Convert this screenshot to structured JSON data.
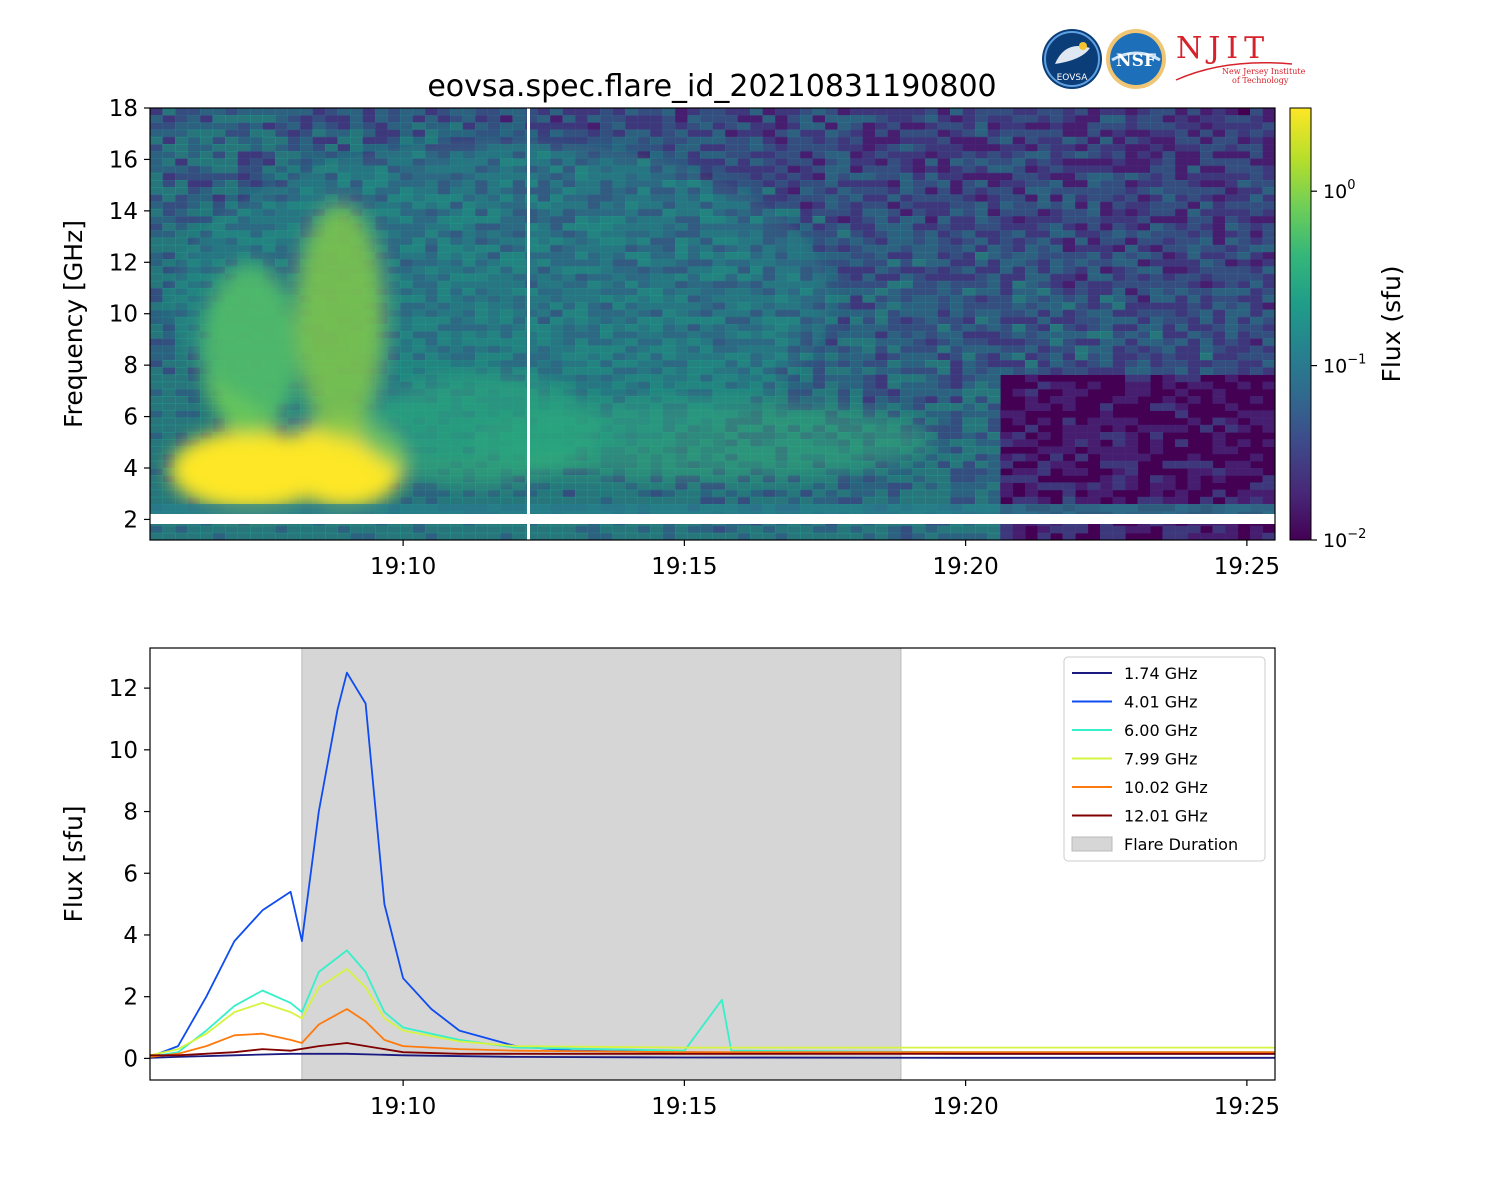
{
  "logos": {
    "eovsa": "EOVSA",
    "nsf": "NSF",
    "njit": "NJIT",
    "njit_sub1": "New Jersey Institute",
    "njit_sub2": "of Technology"
  },
  "colors": {
    "flare_shade": "#d6d6d6",
    "viridis": [
      "#440154",
      "#482878",
      "#3e4989",
      "#31688e",
      "#26828e",
      "#1f9e89",
      "#35b779",
      "#6ece58",
      "#b5de2b",
      "#fde725"
    ]
  },
  "chart_data": [
    {
      "type": "heatmap",
      "title": "eovsa.spec.flare_id_20210831190800",
      "ylabel": "Frequency [GHz]",
      "xlim": [
        "19:05:30",
        "19:25:30"
      ],
      "ylim": [
        1.2,
        18
      ],
      "xticks": [
        "19:10",
        "19:15",
        "19:20",
        "19:25"
      ],
      "yticks": [
        2,
        4,
        6,
        8,
        10,
        12,
        14,
        16,
        18
      ],
      "colorbar": {
        "label": "Flux  (sfu)",
        "scale": "log",
        "range": [
          0.01,
          3
        ],
        "ticks": [
          {
            "base": "10",
            "exp": "0",
            "value": 1
          },
          {
            "base": "10",
            "exp": "−1",
            "value": 0.1
          },
          {
            "base": "10",
            "exp": "−2",
            "value": 0.01
          }
        ]
      },
      "grid": false
    },
    {
      "type": "line",
      "ylabel": "Flux [sfu]",
      "xlim": [
        "19:05:30",
        "19:25:30"
      ],
      "ylim": [
        -0.7,
        13.3
      ],
      "xticks": [
        "19:10",
        "19:15",
        "19:20",
        "19:25"
      ],
      "yticks": [
        0,
        2,
        4,
        6,
        8,
        10,
        12
      ],
      "legend_position": "top-right",
      "grid": false,
      "flare_duration": {
        "label": "Flare Duration",
        "start": "19:08:12",
        "end": "19:18:51"
      },
      "series": [
        {
          "name": "1.74 GHz",
          "color": "#1a1a80",
          "x": [
            "19:05:30",
            "19:06:00",
            "19:07:00",
            "19:08:00",
            "19:09:00",
            "19:10:00",
            "19:12:00",
            "19:15:00",
            "19:20:00",
            "19:25:30"
          ],
          "y": [
            0.02,
            0.05,
            0.1,
            0.15,
            0.15,
            0.1,
            0.05,
            0.03,
            0.02,
            0.02
          ]
        },
        {
          "name": "4.01 GHz",
          "color": "#0f4cf0",
          "x": [
            "19:05:30",
            "19:06:00",
            "19:06:30",
            "19:07:00",
            "19:07:30",
            "19:08:00",
            "19:08:12",
            "19:08:30",
            "19:08:50",
            "19:09:00",
            "19:09:20",
            "19:09:40",
            "19:10:00",
            "19:10:30",
            "19:11:00",
            "19:12:00",
            "19:13:00",
            "19:15:00",
            "19:20:00",
            "19:25:30"
          ],
          "y": [
            0.05,
            0.4,
            2.0,
            3.8,
            4.8,
            5.4,
            3.8,
            8.0,
            11.3,
            12.5,
            11.5,
            5.0,
            2.6,
            1.6,
            0.9,
            0.4,
            0.25,
            0.2,
            0.15,
            0.15
          ]
        },
        {
          "name": "6.00 GHz",
          "color": "#36f0c9",
          "x": [
            "19:05:30",
            "19:06:00",
            "19:06:30",
            "19:07:00",
            "19:07:30",
            "19:08:00",
            "19:08:12",
            "19:08:30",
            "19:09:00",
            "19:09:20",
            "19:09:40",
            "19:10:00",
            "19:11:00",
            "19:12:00",
            "19:15:00",
            "19:15:40",
            "19:15:50",
            "19:20:00",
            "19:25:30"
          ],
          "y": [
            0.05,
            0.2,
            0.9,
            1.7,
            2.2,
            1.8,
            1.5,
            2.8,
            3.5,
            2.8,
            1.5,
            1.0,
            0.6,
            0.35,
            0.25,
            1.9,
            0.25,
            0.2,
            0.2
          ]
        },
        {
          "name": "7.99 GHz",
          "color": "#d4f440",
          "x": [
            "19:05:30",
            "19:06:00",
            "19:06:30",
            "19:07:00",
            "19:07:30",
            "19:08:00",
            "19:08:12",
            "19:08:30",
            "19:09:00",
            "19:09:20",
            "19:09:40",
            "19:10:00",
            "19:11:00",
            "19:12:00",
            "19:15:00",
            "19:20:00",
            "19:25:30"
          ],
          "y": [
            0.1,
            0.3,
            0.8,
            1.5,
            1.8,
            1.5,
            1.3,
            2.3,
            2.9,
            2.3,
            1.3,
            0.9,
            0.55,
            0.4,
            0.35,
            0.35,
            0.35
          ]
        },
        {
          "name": "10.02 GHz",
          "color": "#ff7a0e",
          "x": [
            "19:05:30",
            "19:06:00",
            "19:06:30",
            "19:07:00",
            "19:07:30",
            "19:08:00",
            "19:08:12",
            "19:08:30",
            "19:09:00",
            "19:09:20",
            "19:09:40",
            "19:10:00",
            "19:11:00",
            "19:12:00",
            "19:15:00",
            "19:20:00",
            "19:25:30"
          ],
          "y": [
            0.05,
            0.15,
            0.4,
            0.75,
            0.8,
            0.6,
            0.5,
            1.1,
            1.6,
            1.2,
            0.6,
            0.4,
            0.3,
            0.25,
            0.2,
            0.2,
            0.2
          ]
        },
        {
          "name": "12.01 GHz",
          "color": "#800000",
          "x": [
            "19:05:30",
            "19:06:00",
            "19:07:00",
            "19:07:30",
            "19:08:00",
            "19:08:30",
            "19:09:00",
            "19:09:30",
            "19:10:00",
            "19:11:00",
            "19:15:00",
            "19:20:00",
            "19:25:30"
          ],
          "y": [
            0.1,
            0.1,
            0.2,
            0.3,
            0.25,
            0.4,
            0.5,
            0.35,
            0.2,
            0.15,
            0.15,
            0.15,
            0.15
          ]
        }
      ]
    }
  ]
}
